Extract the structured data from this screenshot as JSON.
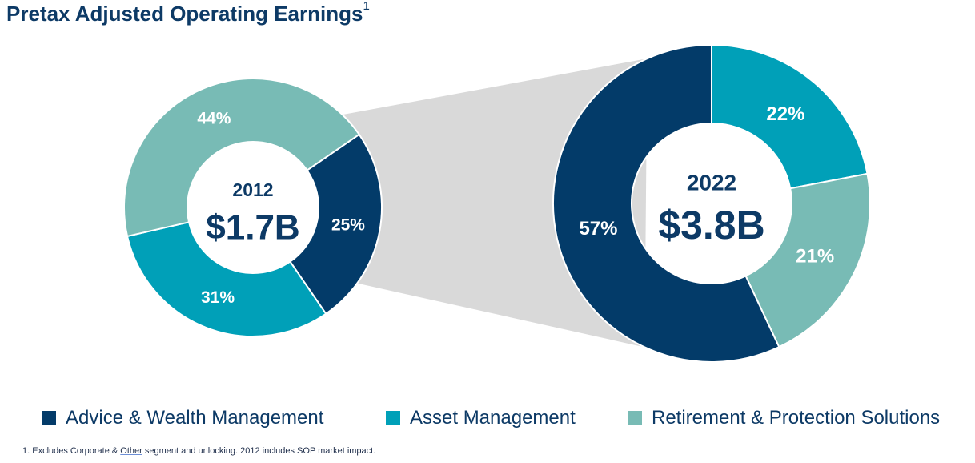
{
  "title": "Pretax Adjusted Operating Earnings",
  "title_superscript": "1",
  "colors": {
    "advice": "#033b69",
    "asset": "#00a0b8",
    "retirement": "#78bbb5",
    "text_dark": "#0d3a66",
    "bridge": "#d9d9d9"
  },
  "chart_data": [
    {
      "type": "donut",
      "year": "2012",
      "total": "$1.7B",
      "slices": [
        {
          "segment": "Advice & Wealth Management",
          "value": 25,
          "label": "25%",
          "color_key": "advice"
        },
        {
          "segment": "Asset Management",
          "value": 31,
          "label": "31%",
          "color_key": "asset"
        },
        {
          "segment": "Retirement & Protection Solutions",
          "value": 44,
          "label": "44%",
          "color_key": "retirement"
        }
      ]
    },
    {
      "type": "donut",
      "year": "2022",
      "total": "$3.8B",
      "slices": [
        {
          "segment": "Asset Management",
          "value": 22,
          "label": "22%",
          "color_key": "asset"
        },
        {
          "segment": "Retirement & Protection Solutions",
          "value": 21,
          "label": "21%",
          "color_key": "retirement"
        },
        {
          "segment": "Advice & Wealth Management",
          "value": 57,
          "label": "57%",
          "color_key": "advice"
        }
      ]
    }
  ],
  "legend": [
    {
      "label": "Advice & Wealth Management",
      "color_key": "advice"
    },
    {
      "label": "Asset Management",
      "color_key": "asset"
    },
    {
      "label": "Retirement & Protection Solutions",
      "color_key": "retirement"
    }
  ],
  "footnote": {
    "before": "1. Excludes Corporate & ",
    "underlined": "Other",
    "after": " segment and unlocking. 2012 includes SOP market impact."
  }
}
